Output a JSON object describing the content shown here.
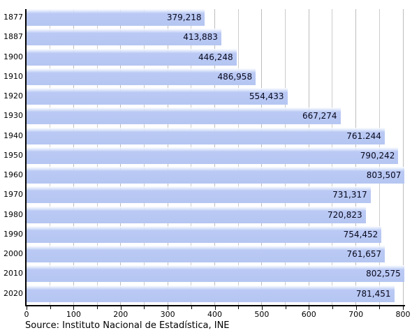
{
  "chart_data": {
    "type": "bar",
    "orientation": "horizontal",
    "title": "",
    "xlabel": "",
    "ylabel": "",
    "categories": [
      "1877",
      "1887",
      "1900",
      "1910",
      "1920",
      "1930",
      "1940",
      "1950",
      "1960",
      "1970",
      "1980",
      "1990",
      "2000",
      "2010",
      "2020"
    ],
    "values": [
      379218,
      413883,
      446248,
      486958,
      554433,
      667274,
      761244,
      790242,
      803507,
      731317,
      720823,
      754452,
      761657,
      802575,
      781451
    ],
    "value_labels": [
      "379,218",
      "413,883",
      "446,248",
      "486,958",
      "554,433",
      "667,274",
      "761.244",
      "790,242",
      "803,507",
      "731,317",
      "720,823",
      "754,452",
      "761,657",
      "802,575",
      "781,451"
    ],
    "xlim": [
      0,
      800
    ],
    "x_axis_unit_scale": 1000,
    "x_major_ticks": [
      0,
      100,
      200,
      300,
      400,
      500,
      600,
      700,
      800
    ],
    "x_minor_tick_step": 50,
    "grid": "vertical",
    "legend": "none"
  },
  "source": {
    "text": "Source: Instituto Nacional de Estadística, INE"
  },
  "colors": {
    "bar": "#b5c6f2",
    "bar_gloss_top": "#fdfeff",
    "grid_minor": "#cccccc",
    "grid_major": "#bdbdbd",
    "axis": "#000000",
    "tick_label_text": "#000000",
    "value_label_text": "#08081c"
  }
}
